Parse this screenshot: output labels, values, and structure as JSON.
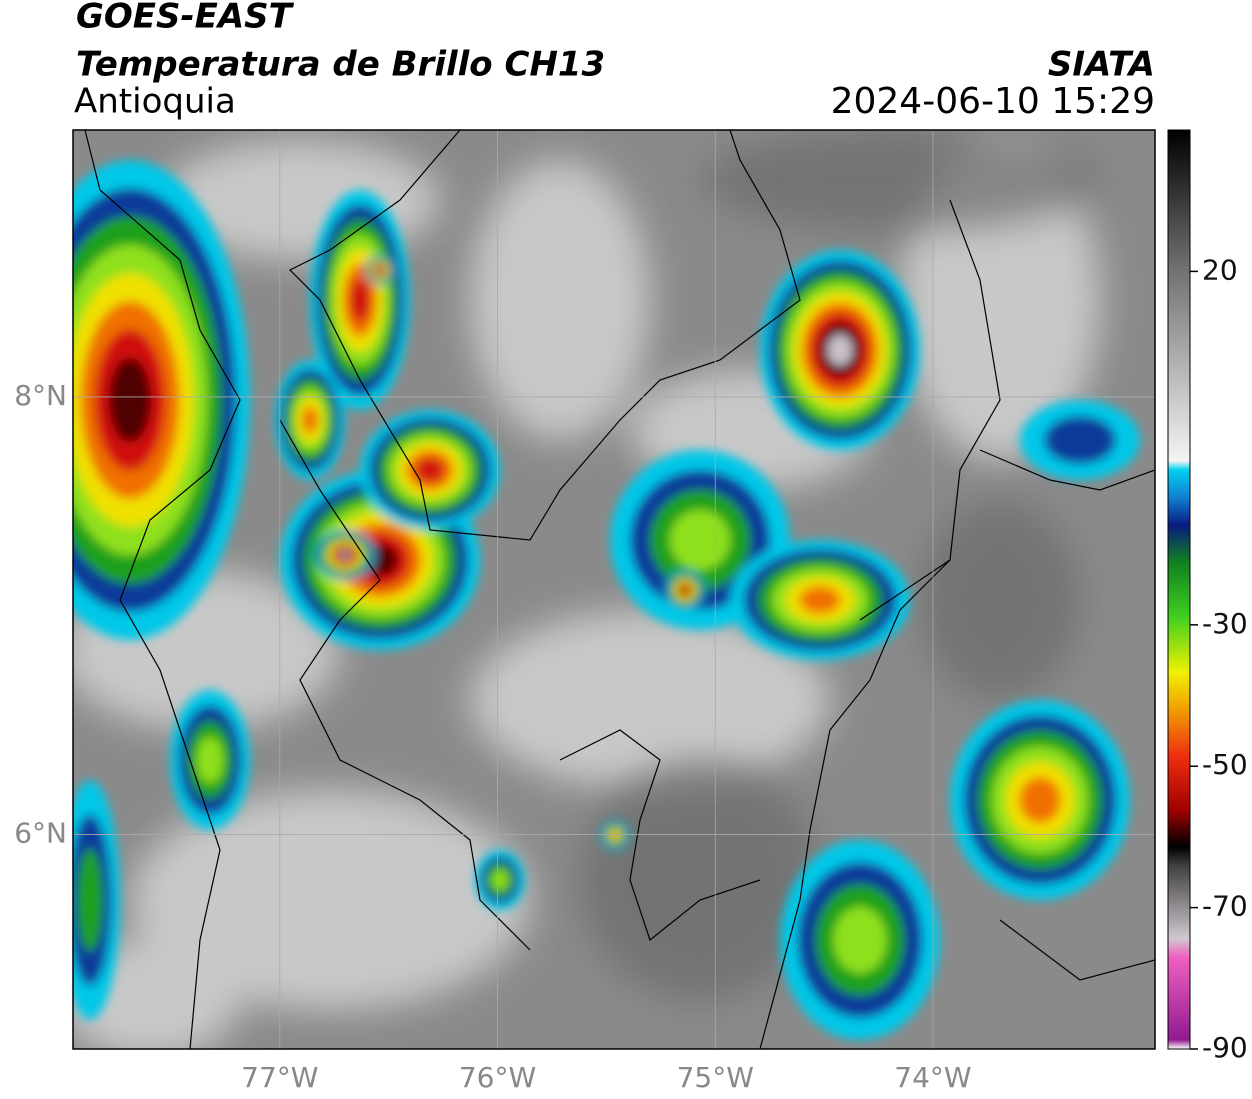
{
  "header": {
    "title": "GOES-EAST",
    "subtitle": "Temperatura de Brillo CH13",
    "region": "Antioquia",
    "source": "SIATA",
    "timestamp": "2024-06-10 15:29"
  },
  "map": {
    "xlim": [
      -77.95,
      -72.98
    ],
    "ylim": [
      5.02,
      9.22
    ],
    "xticks": [
      {
        "value": -77,
        "label": "77°W"
      },
      {
        "value": -76,
        "label": "76°W"
      },
      {
        "value": -75,
        "label": "75°W"
      },
      {
        "value": -74,
        "label": "74°W"
      }
    ],
    "yticks": [
      {
        "value": 6,
        "label": "6°N"
      },
      {
        "value": 8,
        "label": "8°N"
      }
    ]
  },
  "colorbar": {
    "lim": [
      -90,
      40
    ],
    "ticks": [
      -90,
      -70,
      -50,
      -30,
      20
    ]
  }
}
